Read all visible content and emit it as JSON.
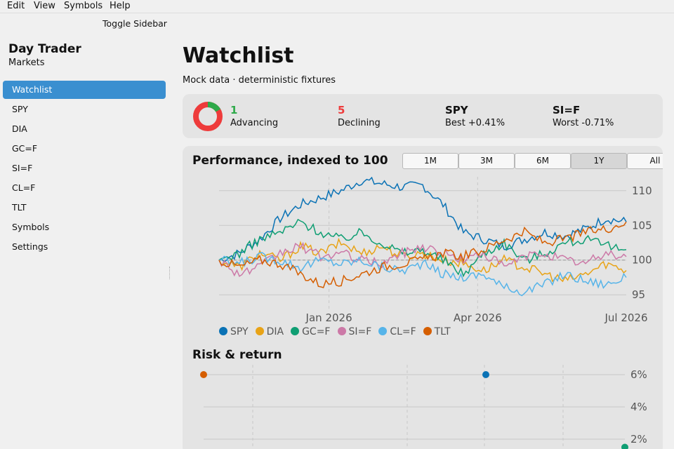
{
  "menu": [
    "Edit",
    "View",
    "Symbols",
    "Help"
  ],
  "toggle_sidebar": "Toggle Sidebar",
  "sidebar": {
    "title": "Day Trader",
    "subtitle": "Markets",
    "items": [
      {
        "label": "Watchlist",
        "active": true
      },
      {
        "label": "SPY"
      },
      {
        "label": "DIA"
      },
      {
        "label": "GC=F"
      },
      {
        "label": "SI=F"
      },
      {
        "label": "CL=F"
      },
      {
        "label": "TLT"
      },
      {
        "label": "Symbols"
      },
      {
        "label": "Settings"
      }
    ]
  },
  "page": {
    "title": "Watchlist",
    "subtitle": "Mock data · deterministic fixtures"
  },
  "summary": {
    "advancing": {
      "value": "1",
      "label": "Advancing",
      "color": "#2eaa4a"
    },
    "declining": {
      "value": "5",
      "label": "Declining",
      "color": "#ee3b3b"
    },
    "best": {
      "symbol": "SPY",
      "label": "Best +0.41%"
    },
    "worst": {
      "symbol": "SI=F",
      "label": "Worst -0.71%"
    }
  },
  "performance": {
    "title": "Performance, indexed to 100",
    "ranges": [
      "1M",
      "3M",
      "6M",
      "1Y",
      "All"
    ],
    "selected_range": "1Y"
  },
  "chart_data": [
    {
      "type": "line",
      "title": "Performance, indexed to 100",
      "x_ticks": [
        "Jan 2026",
        "Apr 2026",
        "Jul 2026"
      ],
      "y_ticks": [
        95,
        100,
        105,
        110
      ],
      "ylim": [
        93,
        112
      ],
      "grid": true,
      "legend": "bottom",
      "series": [
        {
          "name": "SPY",
          "color": "#0a72b5",
          "values": [
            100,
            101,
            103,
            106,
            108,
            109,
            110,
            111.5,
            111,
            110.5,
            110.8,
            108,
            104,
            103,
            102,
            103,
            104,
            103.5,
            104.5,
            106,
            105.5
          ]
        },
        {
          "name": "DIA",
          "color": "#e8a317",
          "values": [
            100,
            99,
            101,
            100,
            102,
            101,
            102.5,
            101,
            102,
            100.5,
            101,
            100,
            99.5,
            98.5,
            100,
            99,
            98,
            97,
            98,
            99.5,
            98.5
          ]
        },
        {
          "name": "GC=F",
          "color": "#0f9e73",
          "values": [
            100,
            101,
            103,
            104,
            105.5,
            104,
            103,
            104,
            102.5,
            101,
            101.5,
            100,
            98,
            101,
            102.5,
            100,
            101,
            102.5,
            103,
            102,
            101.5
          ]
        },
        {
          "name": "SI=F",
          "color": "#cc79a7",
          "values": [
            100,
            98,
            99,
            101,
            102,
            100.5,
            101,
            100,
            99.5,
            101,
            102,
            101,
            100,
            101,
            99,
            100.5,
            101,
            100,
            99.5,
            101,
            100.5
          ]
        },
        {
          "name": "CL=F",
          "color": "#56b4e9",
          "values": [
            100,
            99.5,
            100.5,
            100,
            99,
            100,
            99.5,
            100,
            99,
            98.5,
            99.5,
            98,
            97.5,
            98,
            96,
            95.5,
            96.5,
            98,
            97,
            96.5,
            97.5
          ]
        },
        {
          "name": "TLT",
          "color": "#d55e00",
          "values": [
            100,
            99,
            100,
            99.5,
            98,
            96.5,
            97,
            98,
            99,
            99.5,
            100,
            101,
            100.5,
            101.5,
            103,
            104,
            102.5,
            103,
            104,
            104.5,
            105.5
          ]
        }
      ]
    },
    {
      "type": "scatter",
      "title": "Risk & return",
      "y_ticks": [
        "6%",
        "4%",
        "2%"
      ],
      "ylim": [
        1.5,
        6.5
      ],
      "grid": true,
      "points": [
        {
          "name": "TLT",
          "color": "#d55e00",
          "x": 0.0,
          "y": 6.0
        },
        {
          "name": "SPY",
          "color": "#0a72b5",
          "x": 0.67,
          "y": 6.0
        },
        {
          "name": "GC=F",
          "color": "#0f9e73",
          "x": 1.0,
          "y": 1.5
        }
      ]
    }
  ],
  "risk": {
    "title": "Risk & return"
  }
}
